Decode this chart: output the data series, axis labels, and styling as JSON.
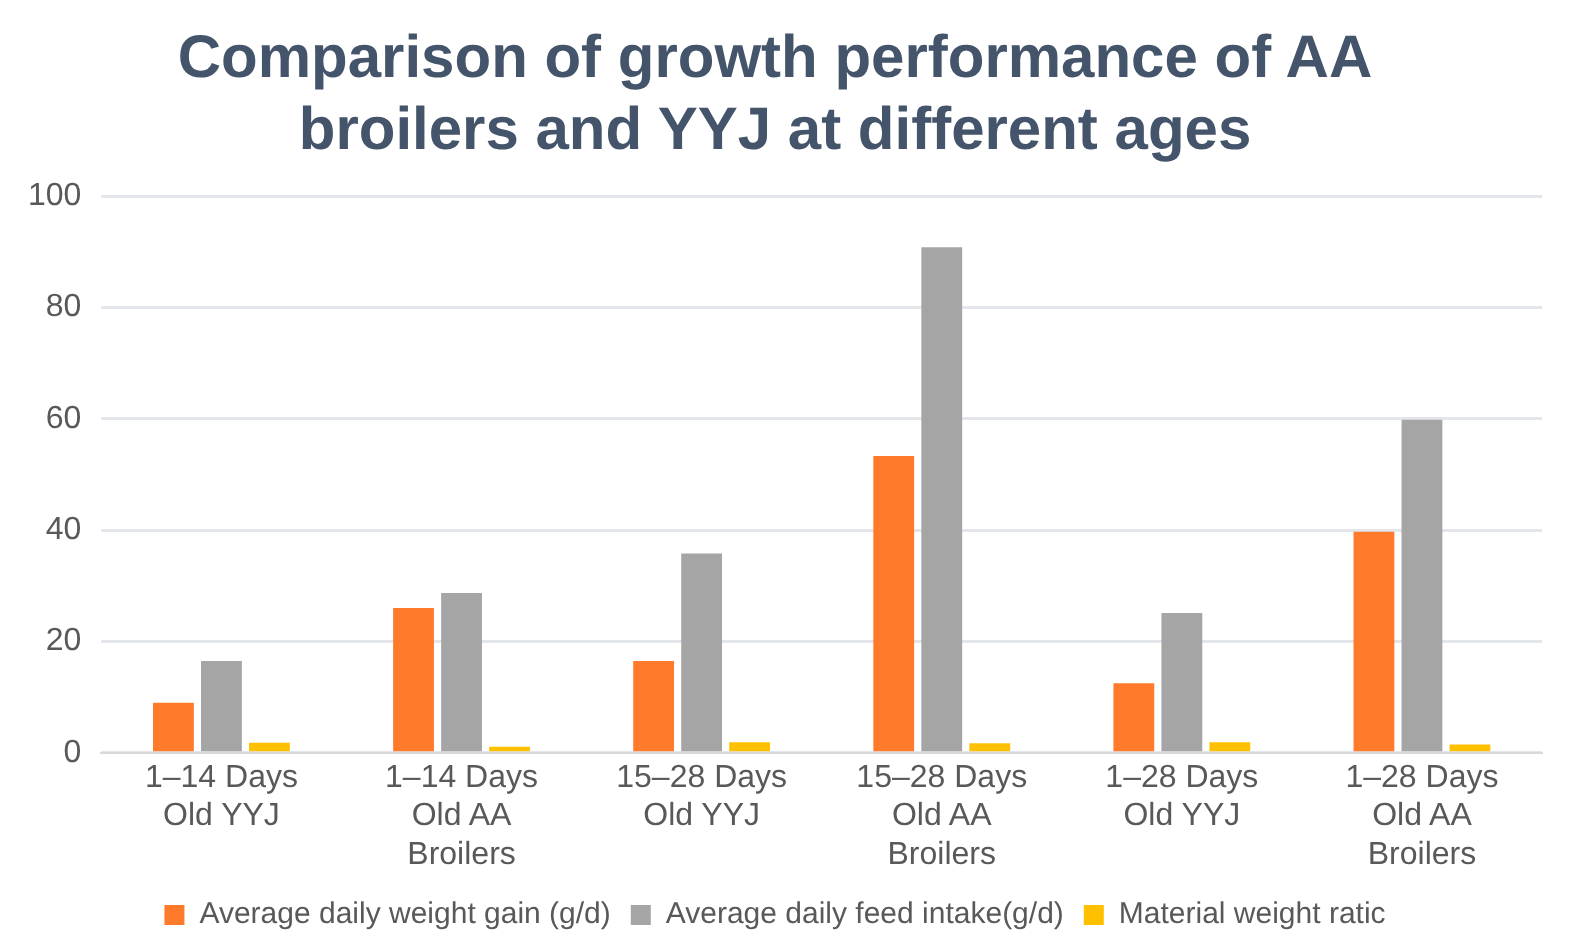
{
  "chart_data": {
    "type": "bar",
    "title": "Comparison of growth performance of AA broilers and YYJ at different ages",
    "categories": [
      "1–14 Days Old YYJ",
      "1–14 Days Old AA Broilers",
      "15–28 Days Old YYJ",
      "15–28 Days Old AA Broilers",
      "1–28 Days Old YYJ",
      "1–28 Days Old AA Broilers"
    ],
    "series": [
      {
        "name": "Average daily weight gain (g/d)",
        "color": "#ff7a2a",
        "values": [
          9,
          26,
          16.5,
          53.3,
          12.5,
          39.7
        ]
      },
      {
        "name": "Average daily feed intake(g/d)",
        "color": "#a5a5a5",
        "values": [
          16.5,
          28.7,
          35.8,
          90.8,
          25.1,
          59.8
        ]
      },
      {
        "name": "Material weight ratic",
        "color": "#ffc000",
        "values": [
          1.8,
          1.1,
          1.9,
          1.7,
          1.9,
          1.5
        ]
      }
    ],
    "ylim": [
      0,
      100
    ],
    "yticks": [
      0,
      20,
      40,
      60,
      80,
      100
    ],
    "grid": "y",
    "legend": "bottom"
  }
}
